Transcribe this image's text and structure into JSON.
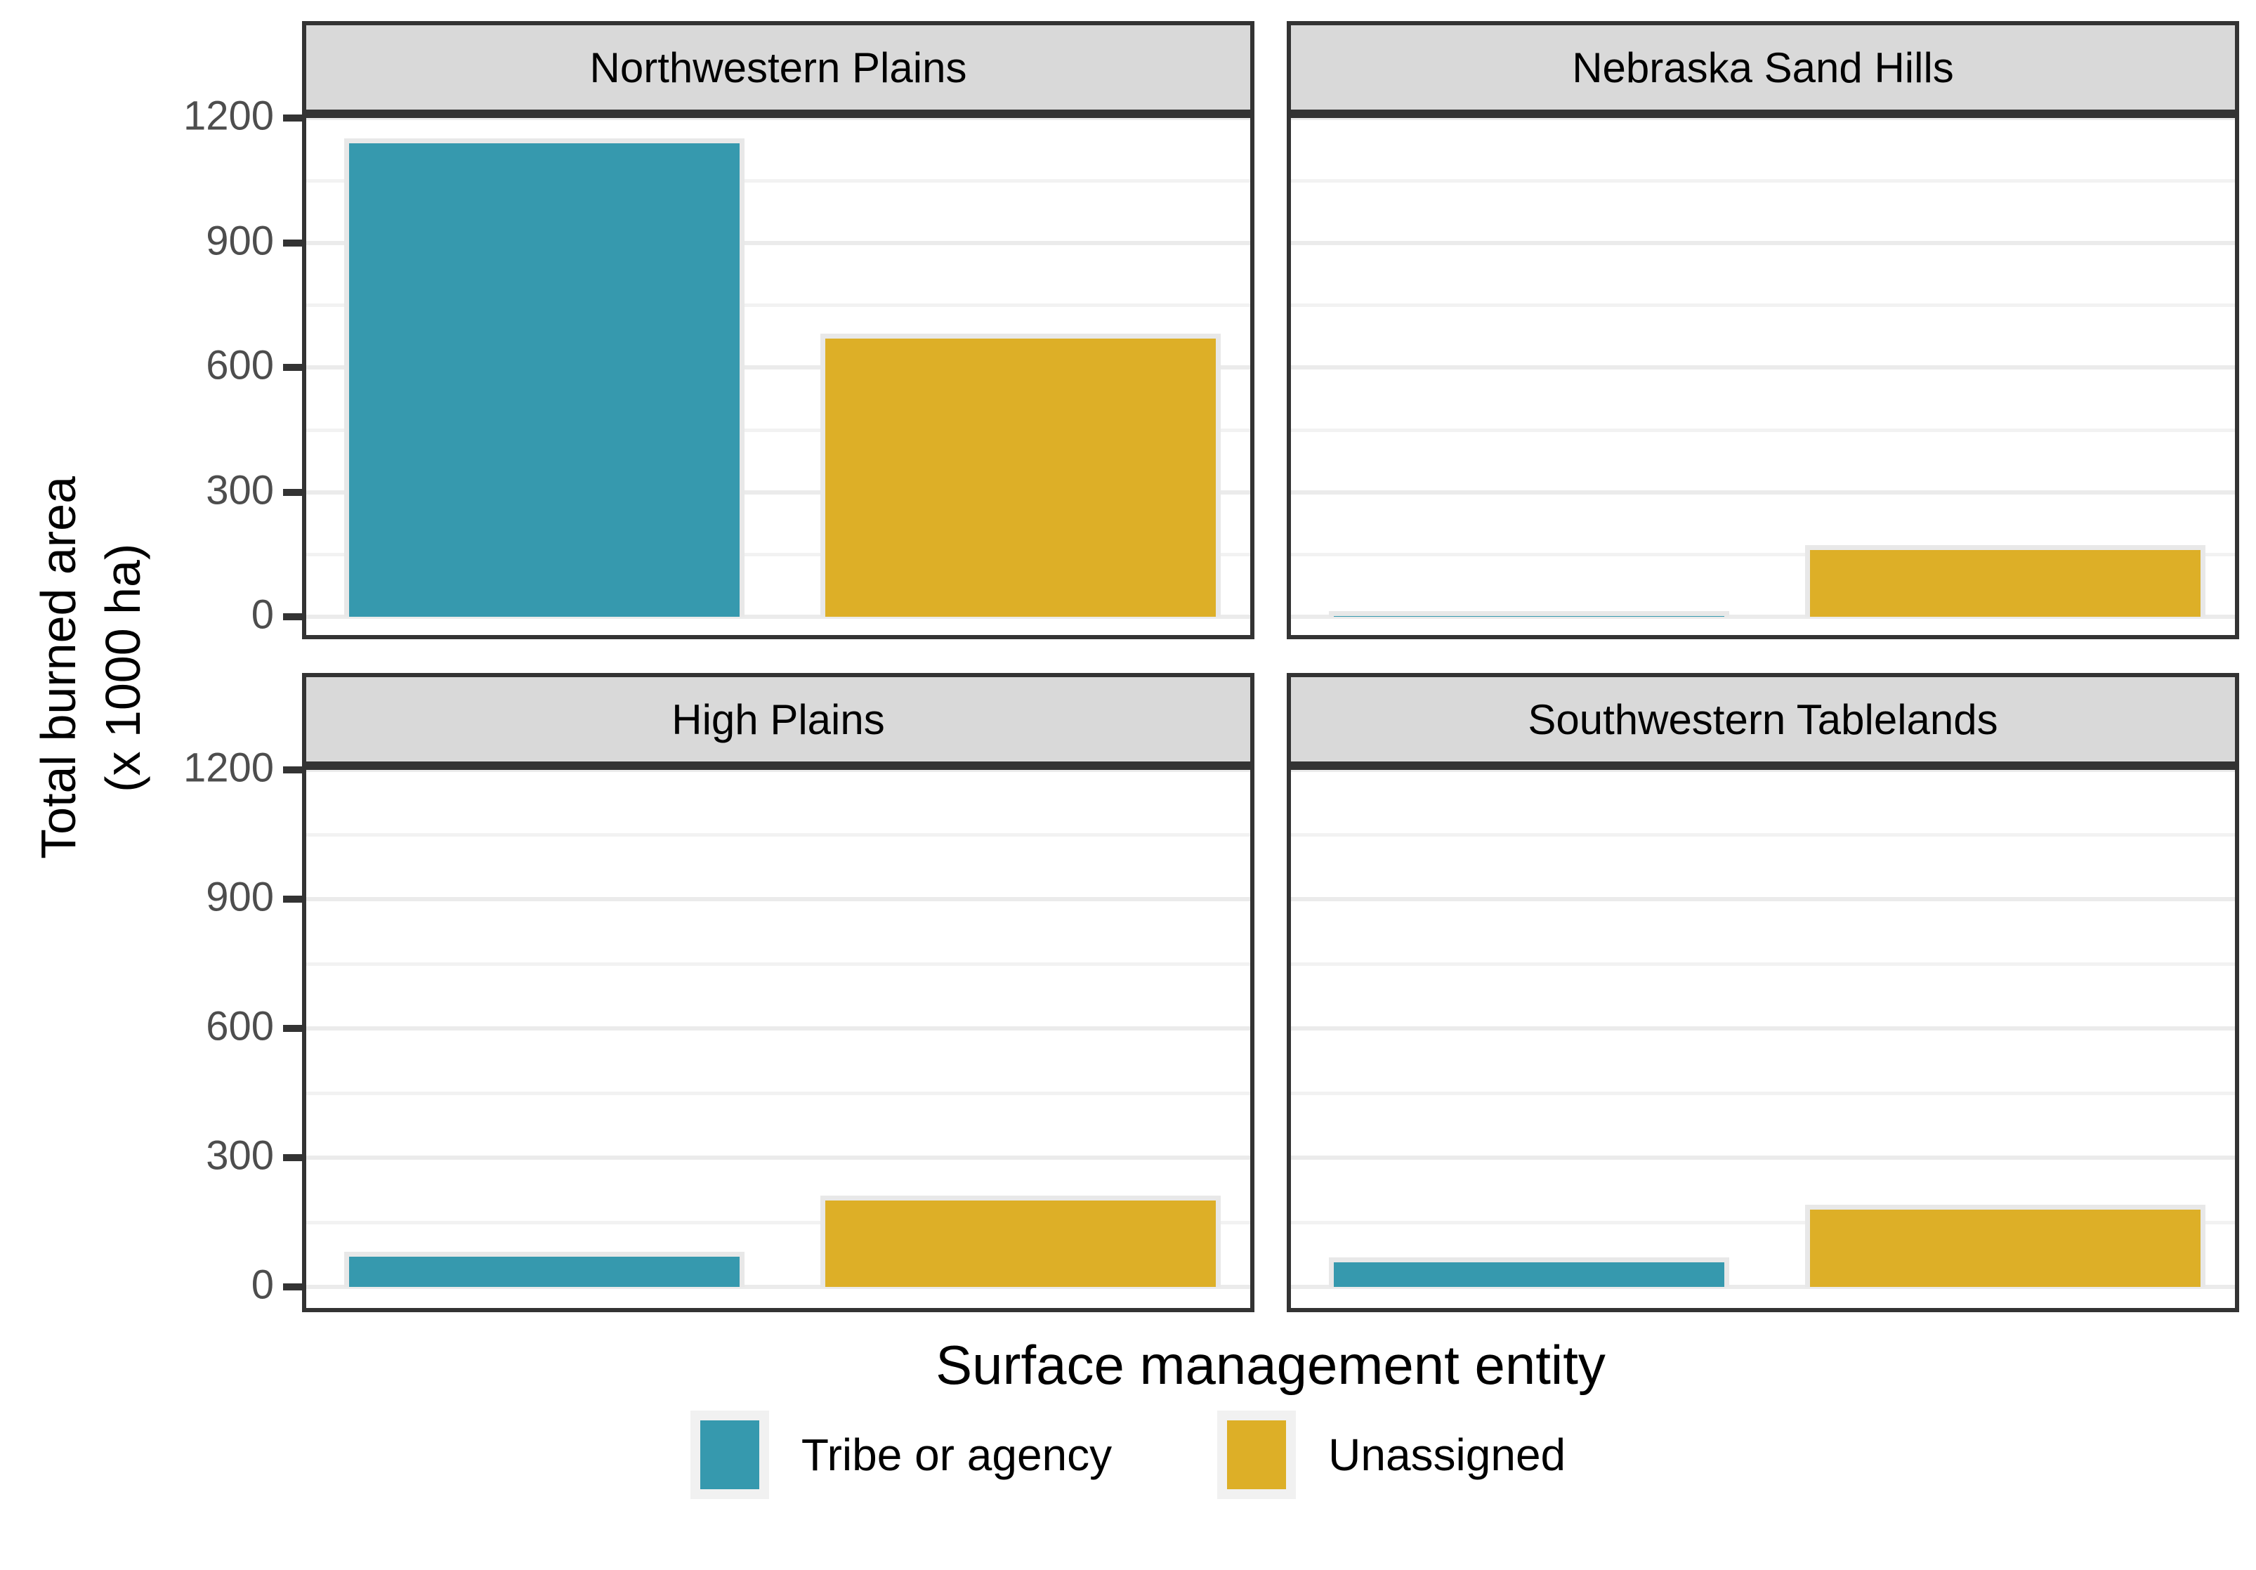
{
  "chart_data": {
    "type": "bar",
    "faceted": true,
    "facet_variable": "ecoregion",
    "facets": [
      {
        "label": "Northwestern Plains",
        "row": 0,
        "col": 0,
        "values": [
          1140,
          670
        ]
      },
      {
        "label": "Nebraska Sand Hills",
        "row": 0,
        "col": 1,
        "values": [
          2,
          160
        ]
      },
      {
        "label": "High Plains",
        "row": 1,
        "col": 0,
        "values": [
          70,
          200
        ]
      },
      {
        "label": "Southwestern Tablelands",
        "row": 1,
        "col": 1,
        "values": [
          57,
          180
        ]
      }
    ],
    "categories": [
      "Tribe or agency",
      "Unassigned"
    ],
    "series": [
      {
        "name": "Tribe or agency",
        "color": "#3699AE"
      },
      {
        "name": "Unassigned",
        "color": "#DDAF27"
      }
    ],
    "title": "",
    "xlabel": "Surface management entity",
    "ylabel": "Total burned area (x 1000 ha)",
    "ylim": [
      0,
      1200
    ],
    "y_ticks": [
      0,
      300,
      600,
      900,
      1200
    ],
    "y_minor_gridlines": [
      150,
      450,
      750,
      1050
    ],
    "grid": "major and minor horizontal gridlines, light gray on white",
    "legend_position": "bottom-center"
  },
  "axes": {
    "y_title_line1": "Total burned area",
    "y_title_line2": "(x 1000 ha)",
    "x_label": "Surface management entity"
  },
  "colors": {
    "teal_bar": "#3699AE",
    "gold_bar": "#DDAF27",
    "bar_outline": "#E8E8E8",
    "strip_background": "#D9D9D9",
    "panel_border": "#333333",
    "grid_major": "#EBEBEB",
    "grid_minor": "#F2F2F2",
    "tick_text": "#4D4D4D",
    "background": "#FFFFFF"
  }
}
